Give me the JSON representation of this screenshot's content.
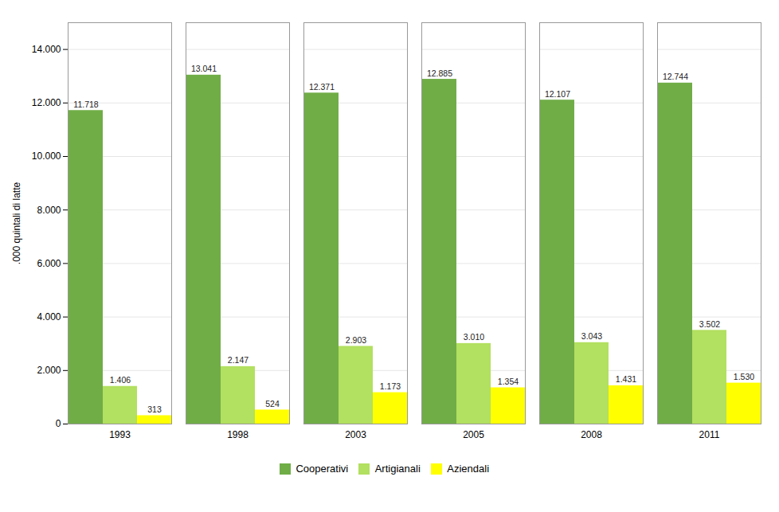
{
  "chart_data": {
    "type": "bar",
    "categories": [
      "1993",
      "1998",
      "2003",
      "2005",
      "2008",
      "2011"
    ],
    "series": [
      {
        "name": "Cooperativi",
        "color": "#70AD47",
        "values": [
          11718,
          13041,
          12371,
          12885,
          12107,
          12744
        ],
        "value_labels": [
          "11.718",
          "13.041",
          "12.371",
          "12.885",
          "12.107",
          "12.744"
        ]
      },
      {
        "name": "Artigianali",
        "color": "#B2E060",
        "values": [
          1406,
          2147,
          2903,
          3010,
          3043,
          3502
        ],
        "value_labels": [
          "1.406",
          "2.147",
          "2.903",
          "3.010",
          "3.043",
          "3.502"
        ]
      },
      {
        "name": "Aziendali",
        "color": "#FFFF00",
        "values": [
          313,
          524,
          1173,
          1354,
          1431,
          1530
        ],
        "value_labels": [
          "313",
          "524",
          "1.173",
          "1.354",
          "1.431",
          "1.530"
        ]
      }
    ],
    "y_label": ".000 quintali di latte",
    "ylim": [
      0,
      15000
    ],
    "yticks": [
      0,
      {
        "value": 2000,
        "label": "2.000"
      },
      {
        "value": 4000,
        "label": "4.000"
      },
      {
        "value": 6000,
        "label": "6.000"
      },
      {
        "value": 8000,
        "label": "8.000"
      },
      {
        "value": 10000,
        "label": "10.000"
      },
      {
        "value": 12000,
        "label": "12.000"
      },
      {
        "value": 14000,
        "label": "14.000"
      }
    ],
    "grid": true,
    "legend": "bottom",
    "data_labels": true
  }
}
